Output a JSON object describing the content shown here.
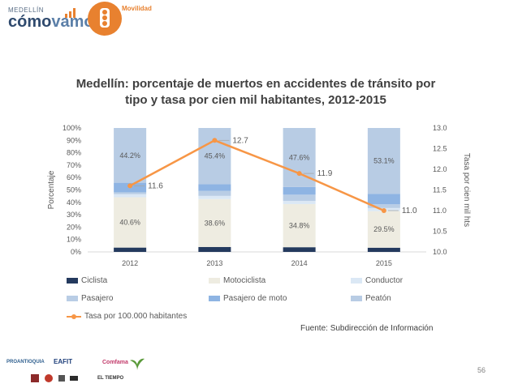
{
  "header": {
    "brand_small": "MEDELLÍN",
    "brand_big_1": "cómo",
    "brand_big_2": "vamos",
    "section": "Movilidad"
  },
  "colors": {
    "ciclista": "#243a5e",
    "motociclista": "#eeece1",
    "conductor": "#dbe8f5",
    "pasajero": "#b9cde5",
    "pasajero_moto": "#8eb4e3",
    "peaton": "#b8cce4",
    "line": "#f79646",
    "accent": "#e8812f"
  },
  "chart_data": {
    "type": "bar",
    "stacked": true,
    "title_line1": "Medellín: porcentaje de muertos en accidentes de tránsito por",
    "title_line2": "tipo y tasa por cien mil habitantes, 2012-2015",
    "categories": [
      "2012",
      "2013",
      "2014",
      "2015"
    ],
    "ylabel": "Porcentaje",
    "y2label": "Tasa por cien mil hts",
    "ylim": [
      0,
      100
    ],
    "y2lim": [
      10.0,
      13.0
    ],
    "y_ticks": [
      "0%",
      "10%",
      "20%",
      "30%",
      "40%",
      "50%",
      "60%",
      "70%",
      "80%",
      "90%",
      "100%"
    ],
    "y2_ticks": [
      "10.0",
      "10.5",
      "11.0",
      "11.5",
      "12.0",
      "12.5",
      "13.0"
    ],
    "series": [
      {
        "name": "Ciclista",
        "key": "ciclista",
        "values": [
          3.5,
          4.0,
          3.8,
          3.4
        ]
      },
      {
        "name": "Motociclista",
        "key": "motociclista",
        "values": [
          40.6,
          38.6,
          34.8,
          29.5
        ]
      },
      {
        "name": "Conductor",
        "key": "conductor",
        "values": [
          2.5,
          2.6,
          2.6,
          2.5
        ]
      },
      {
        "name": "Pasajero",
        "key": "pasajero",
        "values": [
          1.5,
          4.0,
          5.0,
          3.0
        ]
      },
      {
        "name": "Pasajero de moto",
        "key": "pasajero_moto",
        "values": [
          7.7,
          5.4,
          6.2,
          8.5
        ]
      },
      {
        "name": "Peatón",
        "key": "peaton",
        "values": [
          44.2,
          45.4,
          47.6,
          53.1
        ]
      }
    ],
    "line_series": {
      "name": "Tasa por 100.000 habitantes",
      "values": [
        11.6,
        12.7,
        11.9,
        11.0
      ],
      "labels": [
        "11.6",
        "12.7",
        "11.9",
        "11.0"
      ]
    },
    "motociclista_labels": [
      "40.6%",
      "38.6%",
      "34.8%",
      "29.5%"
    ],
    "peaton_labels": [
      "44.2%",
      "45.4%",
      "47.6%",
      "53.1%"
    ]
  },
  "legend": {
    "ciclista": "Ciclista",
    "motociclista": "Motociclista",
    "conductor": "Conductor",
    "pasajero": "Pasajero",
    "pasajero_moto": "Pasajero de moto",
    "peaton": "Peatón",
    "tasa": "Tasa por 100.000 habitantes"
  },
  "source": "Fuente: Subdirección de Información",
  "page_number": "56",
  "sponsors": [
    "PROANTIOQUIA",
    "EAFIT",
    "Comfama",
    "EL TIEMPO"
  ]
}
